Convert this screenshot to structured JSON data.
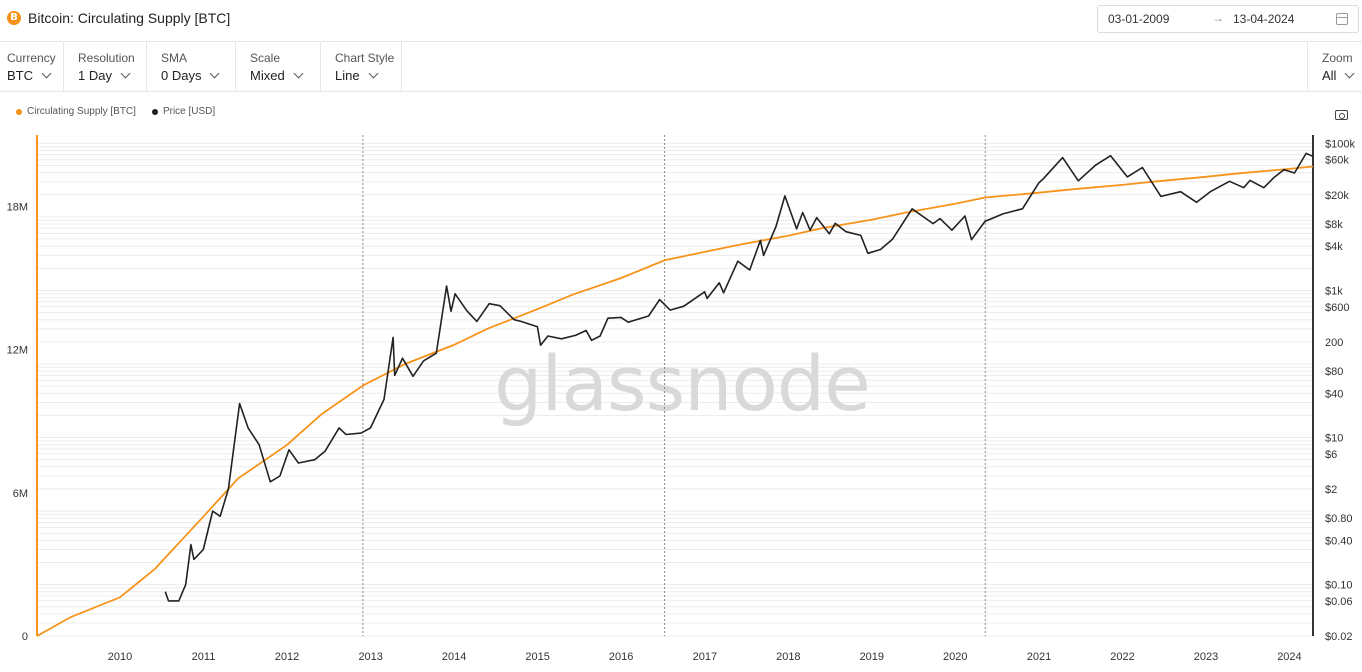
{
  "header": {
    "title": "Bitcoin: Circulating Supply [BTC]",
    "icon": "bitcoin-icon",
    "icon_glyph": "B",
    "date_from": "03-01-2009",
    "date_arrow": "→",
    "date_to": "13-04-2024"
  },
  "toolbar": {
    "currency": {
      "label": "Currency",
      "value": "BTC"
    },
    "resolution": {
      "label": "Resolution",
      "value": "1 Day"
    },
    "sma": {
      "label": "SMA",
      "value": "0 Days"
    },
    "scale": {
      "label": "Scale",
      "value": "Mixed"
    },
    "chart_style": {
      "label": "Chart Style",
      "value": "Line"
    },
    "zoom": {
      "label": "Zoom",
      "value": "All"
    }
  },
  "watermark": "glassnode",
  "colors": {
    "supply": "#f7931a",
    "price": "#222222",
    "grid": "#ececec",
    "axis_left": "#f7931a",
    "axis_right": "#333333"
  },
  "chart_data": {
    "type": "line",
    "x_ticks": [
      "2010",
      "2011",
      "2012",
      "2013",
      "2014",
      "2015",
      "2016",
      "2017",
      "2018",
      "2019",
      "2020",
      "2021",
      "2022",
      "2023",
      "2024"
    ],
    "left_axis": {
      "scale": "linear",
      "range": [
        0,
        21000000
      ],
      "ticks": [
        {
          "value": 0,
          "label": "0"
        },
        {
          "value": 6000000,
          "label": "6M"
        },
        {
          "value": 12000000,
          "label": "12M"
        },
        {
          "value": 18000000,
          "label": "18M"
        }
      ]
    },
    "right_axis": {
      "scale": "log",
      "range": [
        0.02,
        130000
      ],
      "ticks": [
        {
          "value": 100000,
          "label": "$100k"
        },
        {
          "value": 60000,
          "label": "$60k"
        },
        {
          "value": 20000,
          "label": "$20k"
        },
        {
          "value": 8000,
          "label": "$8k"
        },
        {
          "value": 4000,
          "label": "$4k"
        },
        {
          "value": 1000,
          "label": "$1k"
        },
        {
          "value": 600,
          "label": "$600"
        },
        {
          "value": 200,
          "label": "200"
        },
        {
          "value": 80,
          "label": "$80"
        },
        {
          "value": 40,
          "label": "$40"
        },
        {
          "value": 10,
          "label": "$10"
        },
        {
          "value": 6,
          "label": "$6"
        },
        {
          "value": 2,
          "label": "$2"
        },
        {
          "value": 0.8,
          "label": "$0.80"
        },
        {
          "value": 0.4,
          "label": "$0.40"
        },
        {
          "value": 0.1,
          "label": "$0.10"
        },
        {
          "value": 0.06,
          "label": "$0.06"
        },
        {
          "value": 0.02,
          "label": "$0.02"
        }
      ]
    },
    "halvings": [
      "2012-11-28",
      "2016-07-09",
      "2020-05-11"
    ],
    "series": [
      {
        "name": "Circulating Supply [BTC]",
        "axis": "left",
        "points": [
          [
            "2009-01-03",
            50
          ],
          [
            "2009-06-01",
            800000
          ],
          [
            "2009-12-31",
            1620000
          ],
          [
            "2010-06-01",
            2800000
          ],
          [
            "2010-12-31",
            5000000
          ],
          [
            "2011-06-01",
            6600000
          ],
          [
            "2011-12-31",
            8000000
          ],
          [
            "2012-06-01",
            9300000
          ],
          [
            "2012-11-28",
            10500000
          ],
          [
            "2013-06-01",
            11400000
          ],
          [
            "2013-12-31",
            12200000
          ],
          [
            "2014-06-01",
            12900000
          ],
          [
            "2014-12-31",
            13700000
          ],
          [
            "2015-06-01",
            14300000
          ],
          [
            "2015-12-31",
            15000000
          ],
          [
            "2016-07-09",
            15750000
          ],
          [
            "2016-12-31",
            16100000
          ],
          [
            "2017-06-01",
            16400000
          ],
          [
            "2017-12-31",
            16780000
          ],
          [
            "2018-06-01",
            17100000
          ],
          [
            "2018-12-31",
            17450000
          ],
          [
            "2019-06-01",
            17750000
          ],
          [
            "2019-12-31",
            18120000
          ],
          [
            "2020-05-11",
            18380000
          ],
          [
            "2020-12-31",
            18580000
          ],
          [
            "2021-06-01",
            18730000
          ],
          [
            "2021-12-31",
            18910000
          ],
          [
            "2022-06-01",
            19060000
          ],
          [
            "2022-12-31",
            19250000
          ],
          [
            "2023-06-01",
            19400000
          ],
          [
            "2023-12-31",
            19580000
          ],
          [
            "2024-04-13",
            19680000
          ]
        ]
      },
      {
        "name": "Price [USD]",
        "axis": "right",
        "points": [
          [
            "2010-07-18",
            0.08
          ],
          [
            "2010-08-01",
            0.06
          ],
          [
            "2010-09-15",
            0.06
          ],
          [
            "2010-10-15",
            0.1
          ],
          [
            "2010-11-07",
            0.35
          ],
          [
            "2010-11-20",
            0.22
          ],
          [
            "2010-12-31",
            0.3
          ],
          [
            "2011-02-10",
            1.0
          ],
          [
            "2011-03-15",
            0.85
          ],
          [
            "2011-04-20",
            2.0
          ],
          [
            "2011-06-08",
            29
          ],
          [
            "2011-07-15",
            13.5
          ],
          [
            "2011-09-01",
            8
          ],
          [
            "2011-10-20",
            2.5
          ],
          [
            "2011-12-01",
            3
          ],
          [
            "2012-01-10",
            6.8
          ],
          [
            "2012-02-20",
            4.5
          ],
          [
            "2012-05-01",
            5
          ],
          [
            "2012-06-15",
            6.5
          ],
          [
            "2012-08-16",
            13.5
          ],
          [
            "2012-09-15",
            11
          ],
          [
            "2012-11-20",
            11.5
          ],
          [
            "2012-12-31",
            13.5
          ],
          [
            "2013-02-28",
            33
          ],
          [
            "2013-04-09",
            230
          ],
          [
            "2013-04-16",
            70
          ],
          [
            "2013-05-20",
            120
          ],
          [
            "2013-07-05",
            68
          ],
          [
            "2013-08-20",
            110
          ],
          [
            "2013-10-15",
            140
          ],
          [
            "2013-11-29",
            1150
          ],
          [
            "2013-12-18",
            520
          ],
          [
            "2014-01-05",
            900
          ],
          [
            "2014-02-25",
            530
          ],
          [
            "2014-04-10",
            380
          ],
          [
            "2014-06-03",
            660
          ],
          [
            "2014-07-20",
            620
          ],
          [
            "2014-09-20",
            400
          ],
          [
            "2014-10-20",
            380
          ],
          [
            "2014-12-31",
            320
          ],
          [
            "2015-01-14",
            180
          ],
          [
            "2015-02-15",
            240
          ],
          [
            "2015-04-15",
            220
          ],
          [
            "2015-06-15",
            245
          ],
          [
            "2015-08-01",
            285
          ],
          [
            "2015-08-25",
            210
          ],
          [
            "2015-10-01",
            240
          ],
          [
            "2015-11-04",
            420
          ],
          [
            "2015-12-31",
            430
          ],
          [
            "2016-02-01",
            370
          ],
          [
            "2016-04-30",
            450
          ],
          [
            "2016-06-17",
            750
          ],
          [
            "2016-08-02",
            540
          ],
          [
            "2016-10-01",
            610
          ],
          [
            "2016-12-31",
            960
          ],
          [
            "2017-01-11",
            780
          ],
          [
            "2017-03-05",
            1270
          ],
          [
            "2017-03-24",
            930
          ],
          [
            "2017-05-25",
            2500
          ],
          [
            "2017-07-16",
            1900
          ],
          [
            "2017-09-01",
            4800
          ],
          [
            "2017-09-15",
            3000
          ],
          [
            "2017-11-08",
            7400
          ],
          [
            "2017-12-17",
            19300
          ],
          [
            "2018-02-06",
            6900
          ],
          [
            "2018-03-05",
            11500
          ],
          [
            "2018-04-06",
            6600
          ],
          [
            "2018-05-05",
            9800
          ],
          [
            "2018-06-29",
            5900
          ],
          [
            "2018-07-25",
            8200
          ],
          [
            "2018-09-10",
            6300
          ],
          [
            "2018-11-14",
            5600
          ],
          [
            "2018-12-15",
            3200
          ],
          [
            "2019-02-08",
            3600
          ],
          [
            "2019-04-02",
            5000
          ],
          [
            "2019-06-26",
            12900
          ],
          [
            "2019-09-26",
            8100
          ],
          [
            "2019-10-26",
            9500
          ],
          [
            "2019-12-17",
            6600
          ],
          [
            "2020-02-12",
            10300
          ],
          [
            "2020-03-12",
            4900
          ],
          [
            "2020-05-10",
            8700
          ],
          [
            "2020-07-27",
            11000
          ],
          [
            "2020-10-21",
            12900
          ],
          [
            "2020-12-31",
            29000
          ],
          [
            "2021-01-20",
            33000
          ],
          [
            "2021-04-14",
            64000
          ],
          [
            "2021-06-22",
            31000
          ],
          [
            "2021-09-07",
            51000
          ],
          [
            "2021-11-10",
            68000
          ],
          [
            "2022-01-22",
            35000
          ],
          [
            "2022-03-29",
            47000
          ],
          [
            "2022-06-18",
            19000
          ],
          [
            "2022-09-12",
            22000
          ],
          [
            "2022-11-21",
            15800
          ],
          [
            "2023-01-20",
            22000
          ],
          [
            "2023-04-14",
            30500
          ],
          [
            "2023-06-15",
            25000
          ],
          [
            "2023-07-13",
            31400
          ],
          [
            "2023-09-11",
            25000
          ],
          [
            "2023-10-24",
            34000
          ],
          [
            "2023-12-08",
            44000
          ],
          [
            "2024-01-23",
            39500
          ],
          [
            "2024-03-14",
            73000
          ],
          [
            "2024-04-01",
            69000
          ],
          [
            "2024-04-13",
            67000
          ]
        ]
      }
    ],
    "legend": {
      "placement": "top-left",
      "items": [
        "Circulating Supply [BTC]",
        "Price [USD]"
      ]
    },
    "grid": true
  }
}
